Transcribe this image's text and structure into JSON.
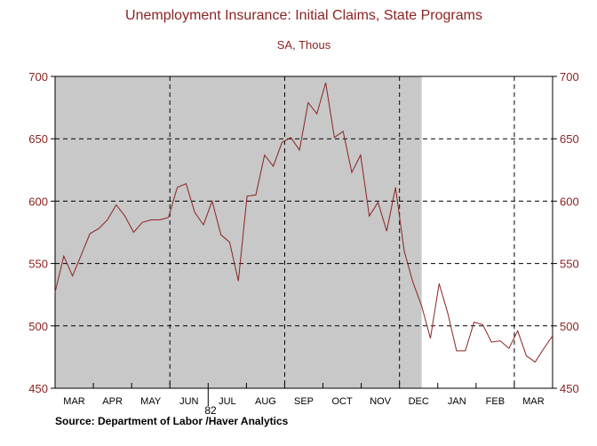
{
  "chart_data": {
    "type": "line",
    "title": "Unemployment Insurance: Initial Claims, State Programs",
    "subtitle": "SA, Thous",
    "source": "Source:  Department of Labor /Haver Analytics",
    "year_label": "82",
    "ylim": [
      450,
      700
    ],
    "yticks": [
      "700",
      "650",
      "600",
      "550",
      "500",
      "450"
    ],
    "months": [
      "MAR",
      "APR",
      "MAY",
      "JUN",
      "JUL",
      "AUG",
      "SEP",
      "OCT",
      "NOV",
      "DEC",
      "JAN",
      "FEB",
      "MAR"
    ],
    "recession_weeks": [
      0,
      42
    ],
    "series": [
      {
        "name": "Initial Claims",
        "color": "#8b2323",
        "values": [
          527,
          556,
          540,
          557,
          574,
          578,
          585,
          597,
          588,
          575,
          583,
          585,
          585,
          587,
          611,
          614,
          591,
          581,
          600,
          573,
          567,
          536,
          604,
          605,
          637,
          628,
          647,
          651,
          641,
          679,
          670,
          695,
          651,
          656,
          623,
          637,
          588,
          599,
          576,
          611,
          560,
          535,
          516,
          490,
          534,
          510,
          480,
          480,
          503,
          501,
          487,
          488,
          482,
          496,
          476,
          471,
          482,
          492
        ]
      }
    ]
  }
}
